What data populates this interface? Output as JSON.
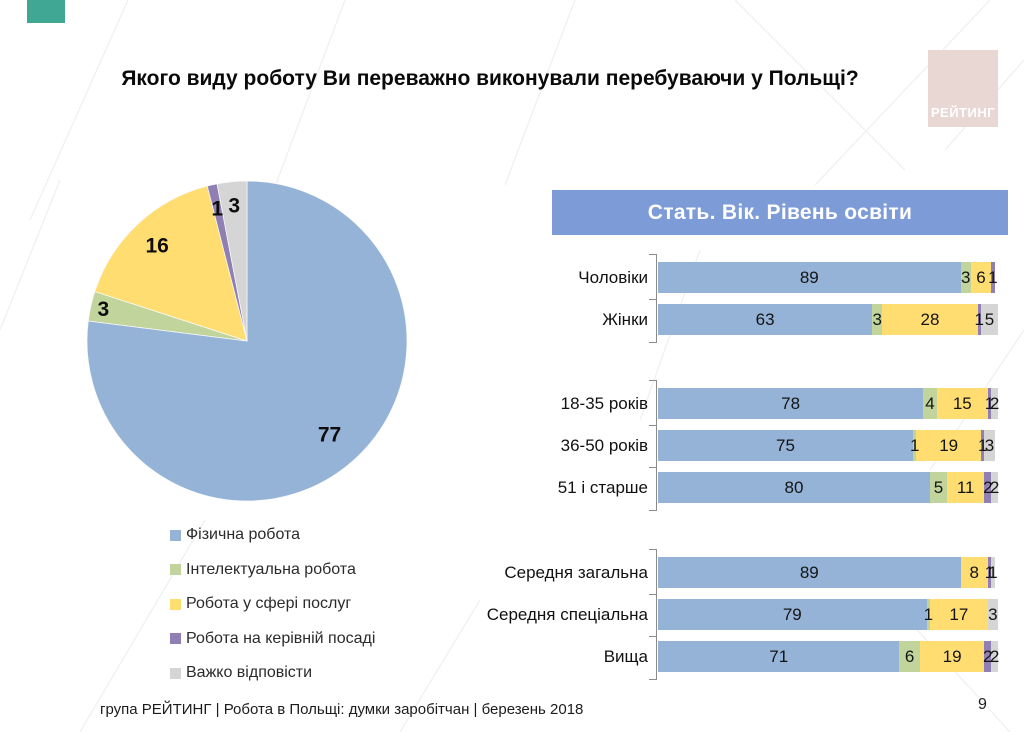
{
  "slide": {
    "title": "Якого виду роботу Ви переважно виконували перебуваючи у Польщі?",
    "footer": "група РЕЙТИНГ  | Робота в Польщі: думки заробітчан  |  березень 2018",
    "page_number": "9",
    "logo_text": "РЕЙТИНГ"
  },
  "colors": {
    "series": [
      "#95B3D7",
      "#C0D49C",
      "#FFDD71",
      "#8F7FB2",
      "#D5D5D5"
    ],
    "banner_bg": "#7C9BD7",
    "logo_bg": "#E9D7D4",
    "accent_teal": "#41A795"
  },
  "chart_data": [
    {
      "type": "pie",
      "title": "Якого виду роботу Ви переважно виконували перебуваючи у Польщі?",
      "labels": [
        "Фізична робота",
        "Інтелектуальна робота",
        "Робота у сфері послуг",
        "Робота на керівній посаді",
        "Важко відповісти"
      ],
      "values": [
        77,
        3,
        16,
        1,
        3
      ],
      "colors": [
        "#95B3D7",
        "#C0D49C",
        "#FFDD71",
        "#8F7FB2",
        "#D5D5D5"
      ],
      "legend_position": "bottom-left",
      "start_angle_deg": 0,
      "direction": "clockwise"
    },
    {
      "type": "bar",
      "subtype": "horizontal-stacked",
      "title": "Стать. Вік. Рівень освіти",
      "series_labels": [
        "Фізична робота",
        "Інтелектуальна робота",
        "Робота у сфері послуг",
        "Робота на керівній посаді",
        "Важко відповісти"
      ],
      "xmax": 100,
      "groups": [
        {
          "name": "Стать",
          "rows": [
            {
              "label": "Чоловіки",
              "values": [
                89,
                3,
                6,
                1,
                0
              ]
            },
            {
              "label": "Жінки",
              "values": [
                63,
                3,
                28,
                1,
                5
              ]
            }
          ]
        },
        {
          "name": "Вік",
          "rows": [
            {
              "label": "18-35 років",
              "values": [
                78,
                4,
                15,
                1,
                2
              ]
            },
            {
              "label": "36-50 років",
              "values": [
                75,
                1,
                19,
                1,
                3
              ]
            },
            {
              "label": "51 і старше",
              "values": [
                80,
                5,
                11,
                2,
                2
              ]
            }
          ]
        },
        {
          "name": "Рівень освіти",
          "rows": [
            {
              "label": "Середня загальна",
              "values": [
                89,
                0,
                8,
                1,
                1
              ]
            },
            {
              "label": "Середня спеціальна",
              "values": [
                79,
                1,
                17,
                0,
                3
              ]
            },
            {
              "label": "Вища",
              "values": [
                71,
                6,
                19,
                2,
                2
              ]
            }
          ]
        }
      ]
    }
  ]
}
